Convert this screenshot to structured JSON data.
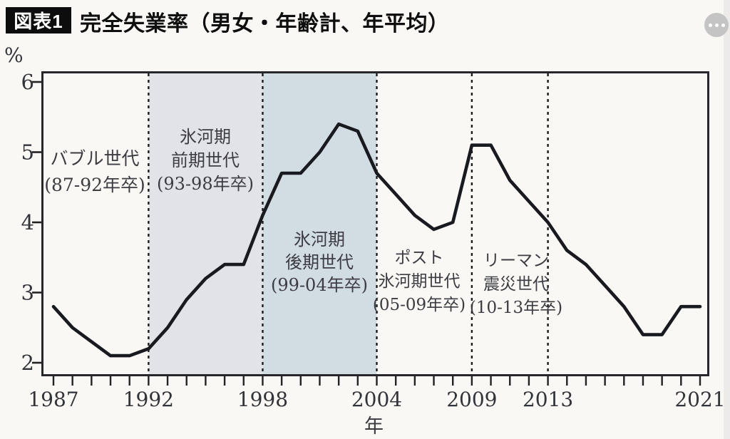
{
  "header": {
    "badge": "図表1",
    "title": "完全失業率（男女・年齢計、年平均）",
    "more_icon": "ellipsis-icon"
  },
  "chart_data": {
    "type": "line",
    "title": "完全失業率（男女・年齢計、年平均）",
    "xlabel": "年",
    "ylabel": "%",
    "x": [
      1987,
      1988,
      1989,
      1990,
      1991,
      1992,
      1993,
      1994,
      1995,
      1996,
      1997,
      1998,
      1999,
      2000,
      2001,
      2002,
      2003,
      2004,
      2005,
      2006,
      2007,
      2008,
      2009,
      2010,
      2011,
      2012,
      2013,
      2014,
      2015,
      2016,
      2017,
      2018,
      2019,
      2020,
      2021
    ],
    "values": [
      2.8,
      2.5,
      2.3,
      2.1,
      2.1,
      2.2,
      2.5,
      2.9,
      3.2,
      3.4,
      3.4,
      4.1,
      4.7,
      4.7,
      5.0,
      5.4,
      5.3,
      4.7,
      4.4,
      4.1,
      3.9,
      4.0,
      5.1,
      5.1,
      4.6,
      4.3,
      4.0,
      3.6,
      3.4,
      3.1,
      2.8,
      2.4,
      2.4,
      2.8,
      2.8
    ],
    "ylim": [
      2,
      6
    ],
    "x_tick_labels": [
      "1987",
      "1992",
      "1998",
      "2004",
      "2009",
      "2013",
      "2021"
    ],
    "x_tick_years": [
      1987,
      1992,
      1998,
      2004,
      2009,
      2013,
      2021
    ],
    "y_tick_labels": [
      "6",
      "5",
      "4",
      "3",
      "2"
    ],
    "y_tick_values": [
      6,
      5,
      4,
      3,
      2
    ],
    "grid": false,
    "legend": "none",
    "line_color": "#191920",
    "frame_color": "#26262b",
    "divider_years": [
      1992,
      1998,
      2004,
      2009,
      2013
    ],
    "regions": [
      {
        "from": 1987,
        "to": 1992,
        "shade": null,
        "label_lines": [
          "バブル世代",
          "(87-92年卒)"
        ]
      },
      {
        "from": 1992,
        "to": 1998,
        "shade": "#e2e3e9",
        "label_lines": [
          "氷河期",
          "前期世代",
          "(93-98年卒)"
        ]
      },
      {
        "from": 1998,
        "to": 2004,
        "shade": "#d2dce3",
        "label_lines": [
          "氷河期",
          "後期世代",
          "(99-04年卒)"
        ]
      },
      {
        "from": 2004,
        "to": 2009,
        "shade": null,
        "label_lines": [
          "ポスト",
          "氷河期世代",
          "(05-09年卒)"
        ]
      },
      {
        "from": 2009,
        "to": 2013,
        "shade": null,
        "label_lines": [
          "リーマン",
          "震災世代",
          "(10-13年卒)"
        ]
      }
    ]
  }
}
